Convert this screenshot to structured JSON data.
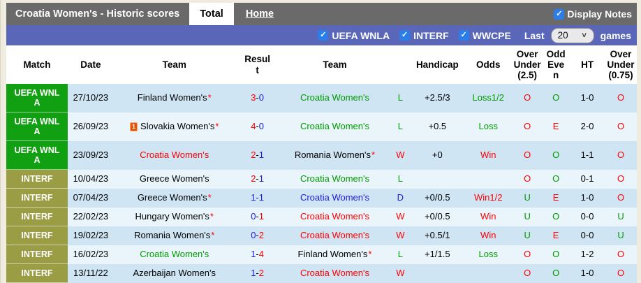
{
  "header": {
    "title": "Croatia Women's - Historic scores",
    "tabs": [
      {
        "label": "Total",
        "active": true
      },
      {
        "label": "Home",
        "active": false
      }
    ],
    "display_notes": {
      "label": "Display Notes",
      "checked": true,
      "check_glyph": "✓"
    }
  },
  "filterbar": {
    "checkboxes": [
      {
        "label": "UEFA WNLA",
        "checked": true
      },
      {
        "label": "INTERF",
        "checked": true
      },
      {
        "label": "WWCPE",
        "checked": true
      }
    ],
    "last_label": "Last",
    "last_value": "20",
    "games_label": "games",
    "check_glyph": "✓"
  },
  "colors": {
    "accent_checkbox": "#2b7de9",
    "bar_purple": "#5a66b8",
    "bar_gray": "#6a6a6a",
    "uefa_green": "#11a011",
    "interf_olive": "#9a9d43",
    "row_dark": "#cfe5f4",
    "row_light": "#e9f5fb",
    "win_red": "#fe0000",
    "loss_green": "#009b00",
    "draw_blue": "#1d1dd8"
  },
  "table": {
    "columns": [
      "Match",
      "Date",
      "Team",
      "Resul\nt",
      "Team",
      "",
      "Handicap",
      "Odds",
      "Over\nUnder\n(2.5)",
      "Odd\nEve\nn",
      "HT",
      "Over\nUnder\n(0.75)"
    ],
    "rows": [
      {
        "match": "UEFA WNL\nA",
        "match_type": "uefa",
        "date": "27/10/23",
        "team1": "Finland Women's",
        "team1_color": "black",
        "team1_star": true,
        "team1_redcard": false,
        "score1": "3",
        "score1_color": "red",
        "dash_color": "black",
        "score2": "0",
        "score2_color": "blue",
        "team2": "Croatia Women's",
        "team2_color": "green",
        "team2_star": false,
        "wdl": "L",
        "wdl_color": "green",
        "handicap": "+2.5/3",
        "odds": "Loss1/2",
        "odds_color": "green",
        "ou25": "O",
        "ou25_color": "red",
        "oddeven": "O",
        "oddeven_color": "green",
        "ht": "1-0",
        "ou075": "O",
        "ou075_color": "red",
        "shade": "dark",
        "height": "tall"
      },
      {
        "match": "UEFA WNL\nA",
        "match_type": "uefa",
        "date": "26/09/23",
        "team1": "Slovakia Women's",
        "team1_color": "black",
        "team1_star": true,
        "team1_redcard": true,
        "redcard_count": "1",
        "score1": "4",
        "score1_color": "red",
        "dash_color": "black",
        "score2": "0",
        "score2_color": "blue",
        "team2": "Croatia Women's",
        "team2_color": "green",
        "team2_star": false,
        "wdl": "L",
        "wdl_color": "green",
        "handicap": "+0.5",
        "odds": "Loss",
        "odds_color": "green",
        "ou25": "O",
        "ou25_color": "red",
        "oddeven": "E",
        "oddeven_color": "red",
        "ht": "2-0",
        "ou075": "O",
        "ou075_color": "red",
        "shade": "light",
        "height": "tall"
      },
      {
        "match": "UEFA WNL\nA",
        "match_type": "uefa",
        "date": "23/09/23",
        "team1": "Croatia Women's",
        "team1_color": "red",
        "team1_star": false,
        "team1_redcard": false,
        "score1": "2",
        "score1_color": "red",
        "dash_color": "black",
        "score2": "1",
        "score2_color": "blue",
        "team2": "Romania Women's",
        "team2_color": "black",
        "team2_star": true,
        "wdl": "W",
        "wdl_color": "red",
        "handicap": "+0",
        "odds": "Win",
        "odds_color": "red",
        "ou25": "O",
        "ou25_color": "red",
        "oddeven": "O",
        "oddeven_color": "green",
        "ht": "1-1",
        "ou075": "O",
        "ou075_color": "red",
        "shade": "dark",
        "height": "tall"
      },
      {
        "match": "INTERF",
        "match_type": "interf",
        "date": "10/04/23",
        "team1": "Greece Women's",
        "team1_color": "black",
        "team1_star": false,
        "team1_redcard": false,
        "score1": "2",
        "score1_color": "red",
        "dash_color": "black",
        "score2": "1",
        "score2_color": "blue",
        "team2": "Croatia Women's",
        "team2_color": "green",
        "team2_star": false,
        "wdl": "L",
        "wdl_color": "green",
        "handicap": "",
        "odds": "",
        "odds_color": "black",
        "ou25": "O",
        "ou25_color": "red",
        "oddeven": "O",
        "oddeven_color": "green",
        "ht": "0-1",
        "ou075": "O",
        "ou075_color": "red",
        "shade": "light",
        "height": "short"
      },
      {
        "match": "INTERF",
        "match_type": "interf",
        "date": "07/04/23",
        "team1": "Greece Women's",
        "team1_color": "black",
        "team1_star": true,
        "team1_redcard": false,
        "score1": "1",
        "score1_color": "blue",
        "dash_color": "blue",
        "score2": "1",
        "score2_color": "blue",
        "team2": "Croatia Women's",
        "team2_color": "blue",
        "team2_star": false,
        "wdl": "D",
        "wdl_color": "blue",
        "handicap": "+0/0.5",
        "odds": "Win1/2",
        "odds_color": "red",
        "ou25": "U",
        "ou25_color": "green",
        "oddeven": "E",
        "oddeven_color": "red",
        "ht": "1-0",
        "ou075": "O",
        "ou075_color": "red",
        "shade": "dark",
        "height": "short"
      },
      {
        "match": "INTERF",
        "match_type": "interf",
        "date": "22/02/23",
        "team1": "Hungary Women's",
        "team1_color": "black",
        "team1_star": true,
        "team1_redcard": false,
        "score1": "0",
        "score1_color": "blue",
        "dash_color": "black",
        "score2": "1",
        "score2_color": "red",
        "team2": "Croatia Women's",
        "team2_color": "red",
        "team2_star": false,
        "wdl": "W",
        "wdl_color": "red",
        "handicap": "+0/0.5",
        "odds": "Win",
        "odds_color": "red",
        "ou25": "U",
        "ou25_color": "green",
        "oddeven": "O",
        "oddeven_color": "green",
        "ht": "0-0",
        "ou075": "U",
        "ou075_color": "green",
        "shade": "light",
        "height": "short"
      },
      {
        "match": "INTERF",
        "match_type": "interf",
        "date": "19/02/23",
        "team1": "Romania Women's",
        "team1_color": "black",
        "team1_star": true,
        "team1_redcard": false,
        "score1": "0",
        "score1_color": "blue",
        "dash_color": "black",
        "score2": "2",
        "score2_color": "red",
        "team2": "Croatia Women's",
        "team2_color": "red",
        "team2_star": false,
        "wdl": "W",
        "wdl_color": "red",
        "handicap": "+0.5/1",
        "odds": "Win",
        "odds_color": "red",
        "ou25": "U",
        "ou25_color": "green",
        "oddeven": "E",
        "oddeven_color": "red",
        "ht": "0-0",
        "ou075": "U",
        "ou075_color": "green",
        "shade": "dark",
        "height": "short"
      },
      {
        "match": "INTERF",
        "match_type": "interf",
        "date": "16/02/23",
        "team1": "Croatia Women's",
        "team1_color": "green",
        "team1_star": false,
        "team1_redcard": false,
        "score1": "1",
        "score1_color": "blue",
        "dash_color": "black",
        "score2": "4",
        "score2_color": "red",
        "team2": "Finland Women's",
        "team2_color": "black",
        "team2_star": true,
        "wdl": "L",
        "wdl_color": "green",
        "handicap": "+1/1.5",
        "odds": "Loss",
        "odds_color": "green",
        "ou25": "O",
        "ou25_color": "red",
        "oddeven": "O",
        "oddeven_color": "green",
        "ht": "1-2",
        "ou075": "O",
        "ou075_color": "red",
        "shade": "light",
        "height": "short"
      },
      {
        "match": "INTERF",
        "match_type": "interf",
        "date": "13/11/22",
        "team1": "Azerbaijan Women's",
        "team1_color": "black",
        "team1_star": false,
        "team1_redcard": false,
        "score1": "1",
        "score1_color": "blue",
        "dash_color": "black",
        "score2": "2",
        "score2_color": "red",
        "team2": "Croatia Women's",
        "team2_color": "red",
        "team2_star": false,
        "wdl": "W",
        "wdl_color": "red",
        "handicap": "",
        "odds": "",
        "odds_color": "black",
        "ou25": "O",
        "ou25_color": "red",
        "oddeven": "O",
        "oddeven_color": "green",
        "ht": "1-0",
        "ou075": "O",
        "ou075_color": "red",
        "shade": "dark",
        "height": "short"
      }
    ]
  }
}
